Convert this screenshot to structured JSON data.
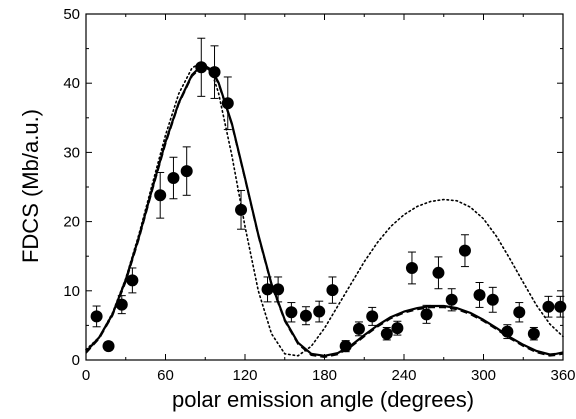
{
  "chart_data": {
    "type": "scatter",
    "xlabel": "polar emission angle (degrees)",
    "ylabel": "FDCS (Mb/a.u.)",
    "xlim": [
      0,
      360
    ],
    "ylim": [
      0,
      50
    ],
    "x_ticks": [
      0,
      60,
      120,
      180,
      240,
      300,
      360
    ],
    "x_tick_labels": [
      "0",
      "60",
      "120",
      "180",
      "240",
      "300",
      "360"
    ],
    "y_ticks": [
      0,
      10,
      20,
      30,
      40,
      50
    ],
    "y_tick_labels": [
      "0",
      "10",
      "20",
      "30",
      "40",
      "50"
    ],
    "grid": false,
    "points": [
      {
        "x": 8,
        "y": 6.3,
        "err": 1.5
      },
      {
        "x": 17,
        "y": 2.0,
        "err": 0.6
      },
      {
        "x": 27,
        "y": 8.0,
        "err": 1.3
      },
      {
        "x": 35,
        "y": 11.5,
        "err": 1.8
      },
      {
        "x": 56,
        "y": 23.8,
        "err": 3.3
      },
      {
        "x": 66,
        "y": 26.3,
        "err": 3.0
      },
      {
        "x": 76,
        "y": 27.3,
        "err": 3.5
      },
      {
        "x": 87,
        "y": 42.3,
        "err": 4.2
      },
      {
        "x": 97,
        "y": 41.6,
        "err": 3.8
      },
      {
        "x": 107,
        "y": 37.1,
        "err": 3.8
      },
      {
        "x": 117,
        "y": 21.7,
        "err": 2.8
      },
      {
        "x": 137,
        "y": 10.2,
        "err": 1.8
      },
      {
        "x": 145,
        "y": 10.2,
        "err": 1.8
      },
      {
        "x": 155,
        "y": 6.9,
        "err": 1.4
      },
      {
        "x": 166,
        "y": 6.4,
        "err": 1.3
      },
      {
        "x": 176,
        "y": 7.0,
        "err": 1.5
      },
      {
        "x": 186,
        "y": 10.1,
        "err": 1.9
      },
      {
        "x": 196,
        "y": 2.0,
        "err": 0.8
      },
      {
        "x": 206,
        "y": 4.5,
        "err": 1.0
      },
      {
        "x": 216,
        "y": 6.3,
        "err": 1.3
      },
      {
        "x": 227,
        "y": 3.8,
        "err": 0.9
      },
      {
        "x": 235,
        "y": 4.6,
        "err": 1.0
      },
      {
        "x": 246,
        "y": 13.3,
        "err": 2.3
      },
      {
        "x": 257,
        "y": 6.6,
        "err": 1.3
      },
      {
        "x": 266,
        "y": 12.6,
        "err": 2.3
      },
      {
        "x": 276,
        "y": 8.7,
        "err": 1.6
      },
      {
        "x": 286,
        "y": 15.8,
        "err": 2.3
      },
      {
        "x": 297,
        "y": 9.4,
        "err": 1.8
      },
      {
        "x": 307,
        "y": 8.7,
        "err": 1.8
      },
      {
        "x": 318,
        "y": 4.1,
        "err": 1.0
      },
      {
        "x": 327,
        "y": 6.9,
        "err": 1.4
      },
      {
        "x": 338,
        "y": 3.8,
        "err": 0.9
      },
      {
        "x": 349,
        "y": 7.7,
        "err": 1.5
      },
      {
        "x": 358,
        "y": 7.7,
        "err": 1.5
      }
    ],
    "curves": [
      {
        "style": "solid",
        "points": [
          [
            0,
            1.2
          ],
          [
            10,
            3.3
          ],
          [
            20,
            6.6
          ],
          [
            30,
            11.6
          ],
          [
            40,
            17.8
          ],
          [
            50,
            24.8
          ],
          [
            60,
            31.5
          ],
          [
            70,
            37.2
          ],
          [
            80,
            41.2
          ],
          [
            88,
            42.7
          ],
          [
            95,
            41.9
          ],
          [
            100,
            40.1
          ],
          [
            110,
            34.2
          ],
          [
            120,
            26.3
          ],
          [
            130,
            18.1
          ],
          [
            140,
            11.0
          ],
          [
            150,
            5.8
          ],
          [
            160,
            2.5
          ],
          [
            170,
            0.9
          ],
          [
            180,
            0.6
          ],
          [
            190,
            1.0
          ],
          [
            200,
            2.1
          ],
          [
            210,
            3.6
          ],
          [
            220,
            5.0
          ],
          [
            230,
            6.2
          ],
          [
            240,
            7.0
          ],
          [
            250,
            7.5
          ],
          [
            260,
            7.8
          ],
          [
            270,
            7.8
          ],
          [
            280,
            7.5
          ],
          [
            290,
            6.8
          ],
          [
            300,
            5.8
          ],
          [
            310,
            4.6
          ],
          [
            320,
            3.3
          ],
          [
            330,
            2.2
          ],
          [
            340,
            1.3
          ],
          [
            350,
            0.8
          ],
          [
            355,
            0.9
          ],
          [
            360,
            1.1
          ]
        ]
      },
      {
        "style": "dashed",
        "points": [
          [
            0,
            1.0
          ],
          [
            10,
            3.1
          ],
          [
            20,
            6.4
          ],
          [
            30,
            11.3
          ],
          [
            40,
            17.5
          ],
          [
            50,
            24.5
          ],
          [
            60,
            31.2
          ],
          [
            70,
            37.0
          ],
          [
            80,
            41.0
          ],
          [
            88,
            42.5
          ],
          [
            95,
            41.7
          ],
          [
            100,
            39.9
          ],
          [
            110,
            34.0
          ],
          [
            120,
            26.1
          ],
          [
            130,
            17.9
          ],
          [
            140,
            10.8
          ],
          [
            150,
            5.6
          ],
          [
            160,
            2.3
          ],
          [
            170,
            0.7
          ],
          [
            180,
            0.4
          ],
          [
            190,
            0.8
          ],
          [
            200,
            1.9
          ],
          [
            210,
            3.4
          ],
          [
            220,
            4.8
          ],
          [
            230,
            6.0
          ],
          [
            240,
            6.8
          ],
          [
            250,
            7.3
          ],
          [
            260,
            7.6
          ],
          [
            270,
            7.6
          ],
          [
            280,
            7.3
          ],
          [
            290,
            6.6
          ],
          [
            300,
            5.6
          ],
          [
            310,
            4.4
          ],
          [
            320,
            3.1
          ],
          [
            330,
            2.0
          ],
          [
            340,
            1.1
          ],
          [
            350,
            0.6
          ],
          [
            355,
            0.7
          ],
          [
            360,
            0.9
          ]
        ]
      },
      {
        "style": "dotted",
        "points": [
          [
            0,
            1.5
          ],
          [
            10,
            3.3
          ],
          [
            20,
            6.8
          ],
          [
            30,
            11.8
          ],
          [
            40,
            18.2
          ],
          [
            50,
            25.4
          ],
          [
            60,
            32.5
          ],
          [
            70,
            38.5
          ],
          [
            80,
            42.2
          ],
          [
            87,
            43.0
          ],
          [
            95,
            41.5
          ],
          [
            100,
            38.6
          ],
          [
            110,
            29.6
          ],
          [
            120,
            19.3
          ],
          [
            130,
            10.0
          ],
          [
            140,
            3.8
          ],
          [
            150,
            0.9
          ],
          [
            160,
            0.6
          ],
          [
            170,
            2.0
          ],
          [
            180,
            4.6
          ],
          [
            190,
            7.8
          ],
          [
            200,
            11.0
          ],
          [
            210,
            14.2
          ],
          [
            220,
            17.0
          ],
          [
            230,
            19.3
          ],
          [
            240,
            21.0
          ],
          [
            250,
            22.2
          ],
          [
            260,
            22.9
          ],
          [
            270,
            23.2
          ],
          [
            280,
            23.0
          ],
          [
            290,
            22.1
          ],
          [
            300,
            20.4
          ],
          [
            310,
            17.8
          ],
          [
            320,
            14.6
          ],
          [
            330,
            11.2
          ],
          [
            340,
            7.9
          ],
          [
            350,
            5.2
          ],
          [
            360,
            3.4
          ]
        ]
      }
    ]
  }
}
